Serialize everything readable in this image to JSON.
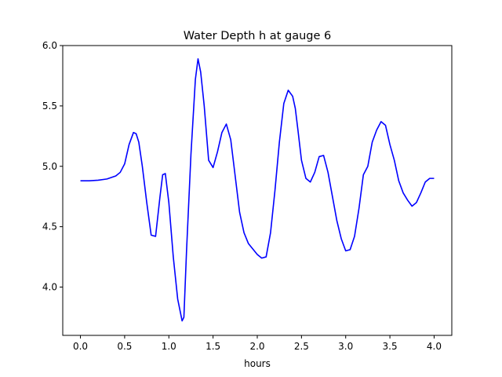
{
  "chart_data": {
    "type": "line",
    "title": "Water Depth h at gauge 6",
    "xlabel": "hours",
    "ylabel": "",
    "xlim": [
      -0.2,
      4.2
    ],
    "ylim": [
      3.6,
      6.0
    ],
    "xticks": [
      0.0,
      0.5,
      1.0,
      1.5,
      2.0,
      2.5,
      3.0,
      3.5,
      4.0
    ],
    "xtick_labels": [
      "0.0",
      "0.5",
      "1.0",
      "1.5",
      "2.0",
      "2.5",
      "3.0",
      "3.5",
      "4.0"
    ],
    "yticks": [
      4.0,
      4.5,
      5.0,
      5.5,
      6.0
    ],
    "ytick_labels": [
      "4.0",
      "4.5",
      "5.0",
      "5.5",
      "6.0"
    ],
    "grid": false,
    "legend": "none",
    "series": [
      {
        "color": "#0000ff",
        "x": [
          0.0,
          0.1,
          0.2,
          0.3,
          0.4,
          0.45,
          0.5,
          0.55,
          0.6,
          0.63,
          0.66,
          0.7,
          0.75,
          0.8,
          0.85,
          0.9,
          0.93,
          0.96,
          1.0,
          1.05,
          1.1,
          1.15,
          1.17,
          1.2,
          1.25,
          1.3,
          1.33,
          1.36,
          1.4,
          1.45,
          1.5,
          1.55,
          1.6,
          1.65,
          1.7,
          1.75,
          1.8,
          1.85,
          1.9,
          2.0,
          2.05,
          2.1,
          2.15,
          2.2,
          2.25,
          2.3,
          2.35,
          2.4,
          2.43,
          2.46,
          2.5,
          2.55,
          2.6,
          2.65,
          2.7,
          2.75,
          2.8,
          2.85,
          2.9,
          2.95,
          3.0,
          3.05,
          3.1,
          3.15,
          3.2,
          3.25,
          3.3,
          3.35,
          3.4,
          3.45,
          3.5,
          3.55,
          3.6,
          3.65,
          3.7,
          3.75,
          3.8,
          3.85,
          3.9,
          3.95,
          4.0
        ],
        "y": [
          4.88,
          4.88,
          4.885,
          4.895,
          4.92,
          4.95,
          5.02,
          5.18,
          5.28,
          5.27,
          5.2,
          5.0,
          4.7,
          4.43,
          4.42,
          4.75,
          4.93,
          4.94,
          4.7,
          4.25,
          3.9,
          3.72,
          3.75,
          4.3,
          5.1,
          5.72,
          5.89,
          5.78,
          5.5,
          5.05,
          4.99,
          5.12,
          5.28,
          5.35,
          5.22,
          4.92,
          4.62,
          4.45,
          4.36,
          4.27,
          4.24,
          4.25,
          4.45,
          4.8,
          5.2,
          5.52,
          5.63,
          5.58,
          5.48,
          5.3,
          5.05,
          4.9,
          4.87,
          4.95,
          5.08,
          5.09,
          4.95,
          4.75,
          4.55,
          4.4,
          4.3,
          4.31,
          4.42,
          4.65,
          4.93,
          5.0,
          5.2,
          5.3,
          5.37,
          5.34,
          5.18,
          5.05,
          4.88,
          4.78,
          4.72,
          4.67,
          4.7,
          4.78,
          4.87,
          4.9,
          4.9
        ]
      }
    ]
  }
}
